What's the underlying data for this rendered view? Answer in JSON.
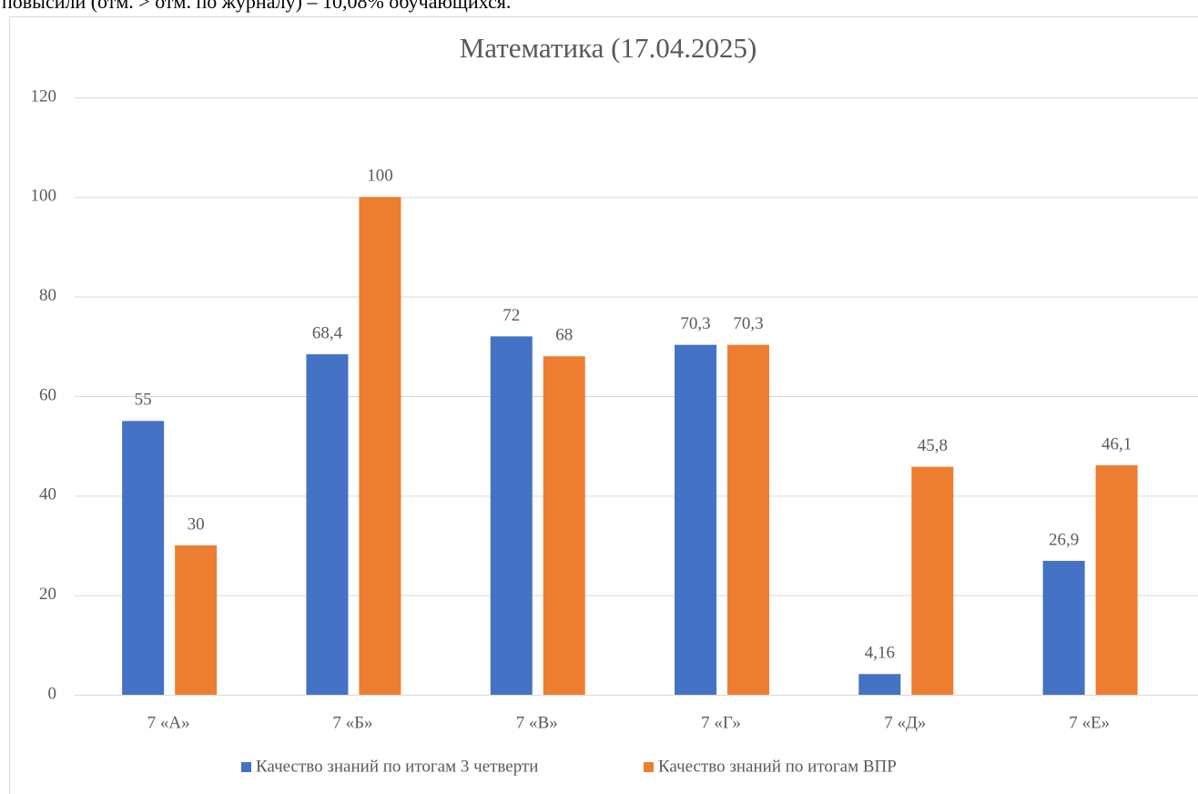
{
  "text_fragment": "повысили (отм. ˃ отм. по журналу) – 10,08% обучающихся.",
  "chart_data": {
    "type": "bar",
    "title": "Математика (17.04.2025)",
    "categories": [
      "7 «А»",
      "7 «Б»",
      "7 «В»",
      "7 «Г»",
      "7 «Д»",
      "7 «Е»"
    ],
    "series": [
      {
        "name": "Качество знаний по итогам 3 четверти",
        "color": "#4472c4",
        "values": [
          55,
          68.4,
          72,
          70.3,
          4.16,
          26.9
        ],
        "value_labels": [
          "55",
          "68,4",
          "72",
          "70,3",
          "4,16",
          "26,9"
        ]
      },
      {
        "name": "Качество знаний по итогам ВПР",
        "color": "#ed7d31",
        "values": [
          30,
          100,
          68,
          70.3,
          45.8,
          46.1
        ],
        "value_labels": [
          "30",
          "100",
          "68",
          "70,3",
          "45,8",
          "46,1"
        ]
      }
    ],
    "ylim": [
      0,
      120
    ],
    "yticks": [
      0,
      20,
      40,
      60,
      80,
      100,
      120
    ],
    "grid": true,
    "legend": "bottom"
  }
}
